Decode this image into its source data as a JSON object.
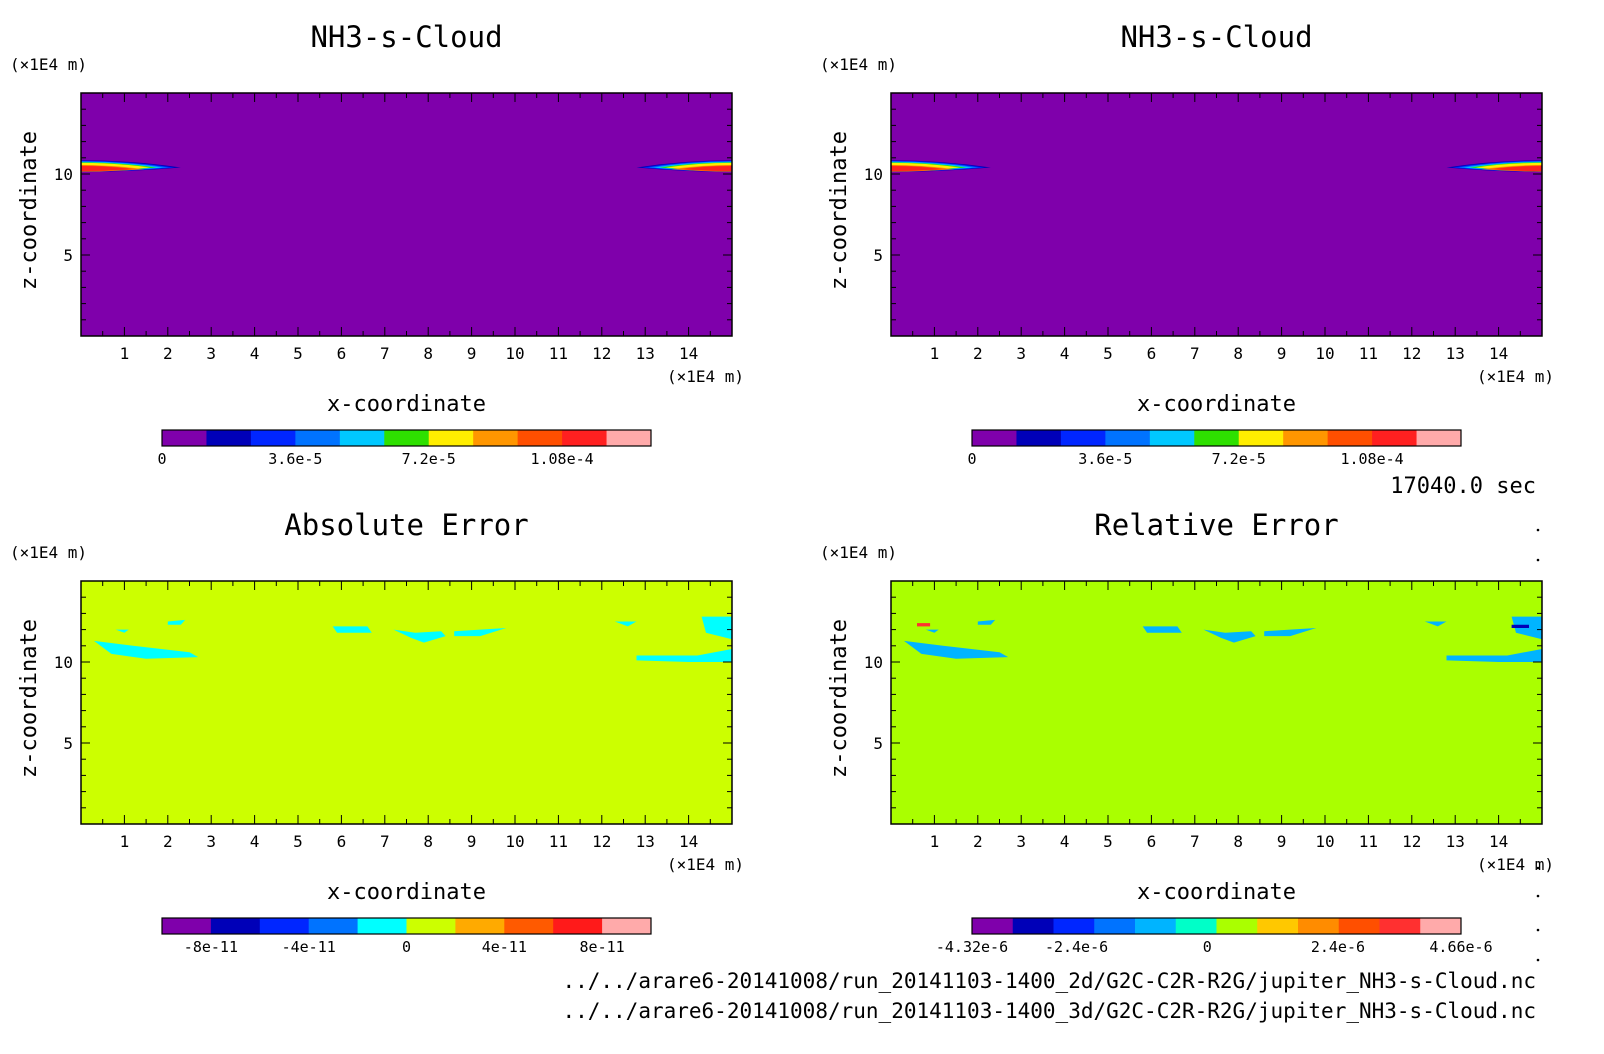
{
  "time_label": "17040.0 sec",
  "footer_lines": [
    "../../arare6-20141008/run_20141103-1400_2d/G2C-C2R-R2G/jupiter_NH3-s-Cloud.nc",
    "../../arare6-20141008/run_20141103-1400_3d/G2C-C2R-R2G/jupiter_NH3-s-Cloud.nc"
  ],
  "chart_data": [
    {
      "type": "heatmap",
      "title": "NH3-s-Cloud",
      "xlabel": "x-coordinate",
      "ylabel": "z-coordinate",
      "x_unit": "(×1E4 m)",
      "y_unit": "(×1E4 m)",
      "xlim": [
        0,
        15
      ],
      "ylim": [
        0,
        15
      ],
      "xticks": [
        1,
        2,
        3,
        4,
        5,
        6,
        7,
        8,
        9,
        10,
        11,
        12,
        13,
        14
      ],
      "yticks": [
        5,
        10
      ],
      "background_color": "#7f00ab",
      "colorbar": {
        "colors": [
          "#7f00ab",
          "#0000b8",
          "#0026ff",
          "#0073ff",
          "#00c8ff",
          "#2ee000",
          "#ffee00",
          "#ff9600",
          "#ff4f00",
          "#ff2020",
          "#ffaaaa"
        ],
        "tick_labels": [
          "0",
          "3.6e-5",
          "7.2e-5",
          "1.08e-4"
        ],
        "tick_values": [
          0,
          3.6e-05,
          7.2e-05,
          0.000108
        ],
        "range": [
          0,
          0.000132
        ]
      },
      "features": [
        {
          "name": "cloud-left",
          "x_range": [
            0,
            2.3
          ],
          "z_center": 10.4,
          "z_halfwidth": 0.45,
          "peak_level": 9
        },
        {
          "name": "cloud-right",
          "x_range": [
            12.8,
            15
          ],
          "z_center": 10.4,
          "z_halfwidth": 0.45,
          "peak_level": 9
        }
      ]
    },
    {
      "type": "heatmap",
      "title": "NH3-s-Cloud",
      "xlabel": "x-coordinate",
      "ylabel": "z-coordinate",
      "x_unit": "(×1E4 m)",
      "y_unit": "(×1E4 m)",
      "xlim": [
        0,
        15
      ],
      "ylim": [
        0,
        15
      ],
      "xticks": [
        1,
        2,
        3,
        4,
        5,
        6,
        7,
        8,
        9,
        10,
        11,
        12,
        13,
        14
      ],
      "yticks": [
        5,
        10
      ],
      "background_color": "#7f00ab",
      "colorbar": {
        "colors": [
          "#7f00ab",
          "#0000b8",
          "#0026ff",
          "#0073ff",
          "#00c8ff",
          "#2ee000",
          "#ffee00",
          "#ff9600",
          "#ff4f00",
          "#ff2020",
          "#ffaaaa"
        ],
        "tick_labels": [
          "0",
          "3.6e-5",
          "7.2e-5",
          "1.08e-4"
        ],
        "tick_values": [
          0,
          3.6e-05,
          7.2e-05,
          0.000108
        ],
        "range": [
          0,
          0.000132
        ]
      },
      "features": [
        {
          "name": "cloud-left",
          "x_range": [
            0,
            2.3
          ],
          "z_center": 10.4,
          "z_halfwidth": 0.45,
          "peak_level": 9
        },
        {
          "name": "cloud-right",
          "x_range": [
            12.8,
            15
          ],
          "z_center": 10.4,
          "z_halfwidth": 0.45,
          "peak_level": 9
        }
      ]
    },
    {
      "type": "heatmap",
      "title": "Absolute Error",
      "xlabel": "x-coordinate",
      "ylabel": "z-coordinate",
      "x_unit": "(×1E4 m)",
      "y_unit": "(×1E4 m)",
      "xlim": [
        0,
        15
      ],
      "ylim": [
        0,
        15
      ],
      "xticks": [
        1,
        2,
        3,
        4,
        5,
        6,
        7,
        8,
        9,
        10,
        11,
        12,
        13,
        14
      ],
      "yticks": [
        5,
        10
      ],
      "background_color": "#ccff00",
      "colorbar": {
        "colors": [
          "#7f00ab",
          "#0000b8",
          "#0026ff",
          "#0073ff",
          "#00ffff",
          "#ccff00",
          "#ffaa00",
          "#ff5a00",
          "#ff1a1a",
          "#ffaaaa"
        ],
        "tick_labels": [
          "-8e-11",
          "-4e-11",
          "0",
          "4e-11",
          "8e-11"
        ],
        "tick_values": [
          -8e-11,
          -4e-11,
          0,
          4e-11,
          8e-11
        ],
        "range": [
          -1e-10,
          1e-10
        ]
      },
      "features": [
        {
          "name": "neg-patch",
          "level": 4,
          "points": [
            [
              0.3,
              11.3
            ],
            [
              1.2,
              11.0
            ],
            [
              2.5,
              10.6
            ],
            [
              2.7,
              10.3
            ],
            [
              1.5,
              10.2
            ],
            [
              0.7,
              10.5
            ]
          ]
        },
        {
          "name": "neg-patch",
          "level": 4,
          "points": [
            [
              0.8,
              12.0
            ],
            [
              1.1,
              12.0
            ],
            [
              1.0,
              11.8
            ]
          ]
        },
        {
          "name": "neg-patch",
          "level": 4,
          "points": [
            [
              2.0,
              12.5
            ],
            [
              2.4,
              12.6
            ],
            [
              2.3,
              12.3
            ],
            [
              2.0,
              12.3
            ]
          ]
        },
        {
          "name": "neg-patch",
          "level": 4,
          "points": [
            [
              5.8,
              12.2
            ],
            [
              6.6,
              12.2
            ],
            [
              6.7,
              11.8
            ],
            [
              5.9,
              11.8
            ]
          ]
        },
        {
          "name": "neg-patch",
          "level": 4,
          "points": [
            [
              7.2,
              12.0
            ],
            [
              7.7,
              11.8
            ],
            [
              8.3,
              11.9
            ],
            [
              8.4,
              11.6
            ],
            [
              7.9,
              11.2
            ],
            [
              7.6,
              11.5
            ]
          ]
        },
        {
          "name": "neg-patch",
          "level": 4,
          "points": [
            [
              8.6,
              11.9
            ],
            [
              9.8,
              12.1
            ],
            [
              9.2,
              11.6
            ],
            [
              8.6,
              11.6
            ]
          ]
        },
        {
          "name": "neg-patch",
          "level": 4,
          "points": [
            [
              12.3,
              12.5
            ],
            [
              12.8,
              12.5
            ],
            [
              12.6,
              12.2
            ]
          ]
        },
        {
          "name": "neg-patch",
          "level": 4,
          "points": [
            [
              14.3,
              12.8
            ],
            [
              15,
              12.8
            ],
            [
              15,
              11.4
            ],
            [
              14.4,
              11.8
            ]
          ]
        },
        {
          "name": "neg-patch",
          "level": 4,
          "points": [
            [
              12.8,
              10.4
            ],
            [
              14.2,
              10.4
            ],
            [
              15,
              10.8
            ],
            [
              15,
              10.0
            ],
            [
              14.0,
              10.0
            ],
            [
              12.8,
              10.1
            ]
          ]
        }
      ]
    },
    {
      "type": "heatmap",
      "title": "Relative Error",
      "xlabel": "x-coordinate",
      "ylabel": "z-coordinate",
      "x_unit": "(×1E4 m)",
      "y_unit": "(×1E4 m)",
      "xlim": [
        0,
        15
      ],
      "ylim": [
        0,
        15
      ],
      "xticks": [
        1,
        2,
        3,
        4,
        5,
        6,
        7,
        8,
        9,
        10,
        11,
        12,
        13,
        14
      ],
      "yticks": [
        5,
        10
      ],
      "background_color": "#aaff00",
      "colorbar": {
        "colors": [
          "#7f00ab",
          "#0000b8",
          "#0026ff",
          "#0073ff",
          "#00b4ff",
          "#00ffc8",
          "#aaff00",
          "#ffc800",
          "#ff8c00",
          "#ff4f00",
          "#ff3030",
          "#ffaaaa"
        ],
        "tick_labels": [
          "-4.32e-6",
          "-2.4e-6",
          "0",
          "2.4e-6",
          "4.66e-6"
        ],
        "tick_values": [
          -4.32e-06,
          -2.4e-06,
          0,
          2.4e-06,
          4.66e-06
        ],
        "range": [
          -4.32e-06,
          4.66e-06
        ]
      },
      "features": [
        {
          "name": "neg-patch",
          "level": 4,
          "points": [
            [
              0.3,
              11.3
            ],
            [
              1.2,
              11.0
            ],
            [
              2.5,
              10.6
            ],
            [
              2.7,
              10.3
            ],
            [
              1.5,
              10.2
            ],
            [
              0.7,
              10.5
            ]
          ]
        },
        {
          "name": "neg-patch",
          "level": 4,
          "points": [
            [
              0.8,
              12.0
            ],
            [
              1.1,
              12.0
            ],
            [
              1.0,
              11.8
            ]
          ]
        },
        {
          "name": "neg-patch",
          "level": 4,
          "points": [
            [
              2.0,
              12.5
            ],
            [
              2.4,
              12.6
            ],
            [
              2.3,
              12.3
            ],
            [
              2.0,
              12.3
            ]
          ]
        },
        {
          "name": "neg-patch",
          "level": 4,
          "points": [
            [
              5.8,
              12.2
            ],
            [
              6.6,
              12.2
            ],
            [
              6.7,
              11.8
            ],
            [
              5.9,
              11.8
            ]
          ]
        },
        {
          "name": "neg-patch",
          "level": 4,
          "points": [
            [
              7.2,
              12.0
            ],
            [
              7.7,
              11.8
            ],
            [
              8.3,
              11.9
            ],
            [
              8.4,
              11.6
            ],
            [
              7.9,
              11.2
            ],
            [
              7.6,
              11.5
            ]
          ]
        },
        {
          "name": "neg-patch",
          "level": 4,
          "points": [
            [
              8.6,
              11.9
            ],
            [
              9.8,
              12.1
            ],
            [
              9.2,
              11.6
            ],
            [
              8.6,
              11.6
            ]
          ]
        },
        {
          "name": "neg-patch",
          "level": 4,
          "points": [
            [
              12.3,
              12.5
            ],
            [
              12.8,
              12.5
            ],
            [
              12.6,
              12.2
            ]
          ]
        },
        {
          "name": "neg-patch",
          "level": 4,
          "points": [
            [
              14.3,
              12.8
            ],
            [
              15,
              12.8
            ],
            [
              15,
              11.4
            ],
            [
              14.4,
              11.8
            ]
          ]
        },
        {
          "name": "neg-patch",
          "level": 4,
          "points": [
            [
              12.8,
              10.4
            ],
            [
              14.2,
              10.4
            ],
            [
              15,
              10.8
            ],
            [
              15,
              10.0
            ],
            [
              14.0,
              10.0
            ],
            [
              12.8,
              10.1
            ]
          ]
        },
        {
          "name": "max-spot",
          "level": 10,
          "points": [
            [
              0.6,
              12.4
            ],
            [
              0.9,
              12.4
            ],
            [
              0.9,
              12.2
            ],
            [
              0.6,
              12.2
            ]
          ]
        },
        {
          "name": "min-spot",
          "level": 1,
          "points": [
            [
              14.3,
              12.3
            ],
            [
              14.7,
              12.3
            ],
            [
              14.7,
              12.1
            ],
            [
              14.3,
              12.1
            ]
          ]
        }
      ]
    }
  ]
}
